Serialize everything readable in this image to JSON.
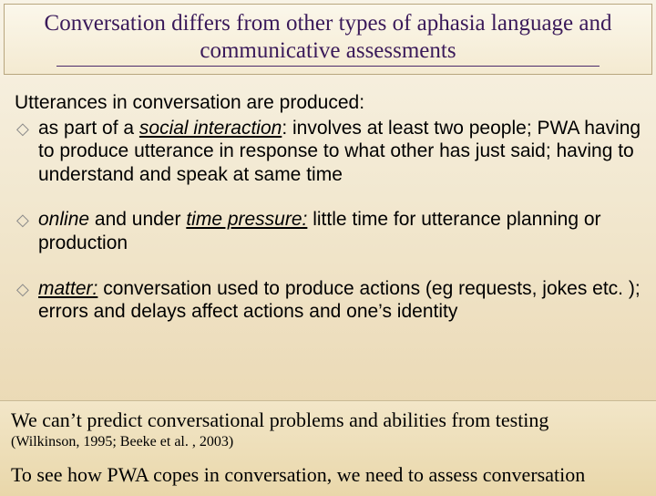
{
  "colors": {
    "title_text": "#3a1a5a",
    "body_text": "#000000",
    "diamond": "#888888",
    "bg_gradient_top": "#f8f3e6",
    "bg_gradient_bottom": "#e9d6ab",
    "title_box_border": "#b8a67e",
    "footer_border": "#c9b995"
  },
  "typography": {
    "title_family": "Times New Roman",
    "title_size_pt": 19,
    "body_family": "Arial",
    "body_size_pt": 16,
    "footer_family": "Times New Roman",
    "footer_size_pt": 17,
    "citation_size_pt": 12
  },
  "title": {
    "line1": "Conversation differs from other types of aphasia language and",
    "line2": "communicative assessments"
  },
  "lead": "Utterances in conversation are produced:",
  "bullets": [
    {
      "pre": "as part of a ",
      "key": "social interaction",
      "key_style": "underline-italic",
      "colon": ": ",
      "rest": "involves at least two people; PWA having to produce utterance in response to what other has just said; having to understand and speak at same time"
    },
    {
      "pre": "",
      "key": "online",
      "key_style": "italic",
      "mid": " and under ",
      "key2": "time pressure:",
      "key2_style": "underline-italic",
      "rest": " little time for utterance planning or production"
    },
    {
      "pre": "",
      "key": "matter:",
      "key_style": "underline-italic",
      "rest": " conversation used to produce actions (eg requests, jokes etc. ); errors and delays affect actions and one’s identity"
    }
  ],
  "footer": {
    "line1": "We can’t predict conversational problems and abilities from testing",
    "citation": "(Wilkinson, 1995; Beeke et al. , 2003)",
    "line2": "To see how PWA copes in conversation, we need to assess conversation"
  },
  "glyphs": {
    "diamond": "◇"
  }
}
